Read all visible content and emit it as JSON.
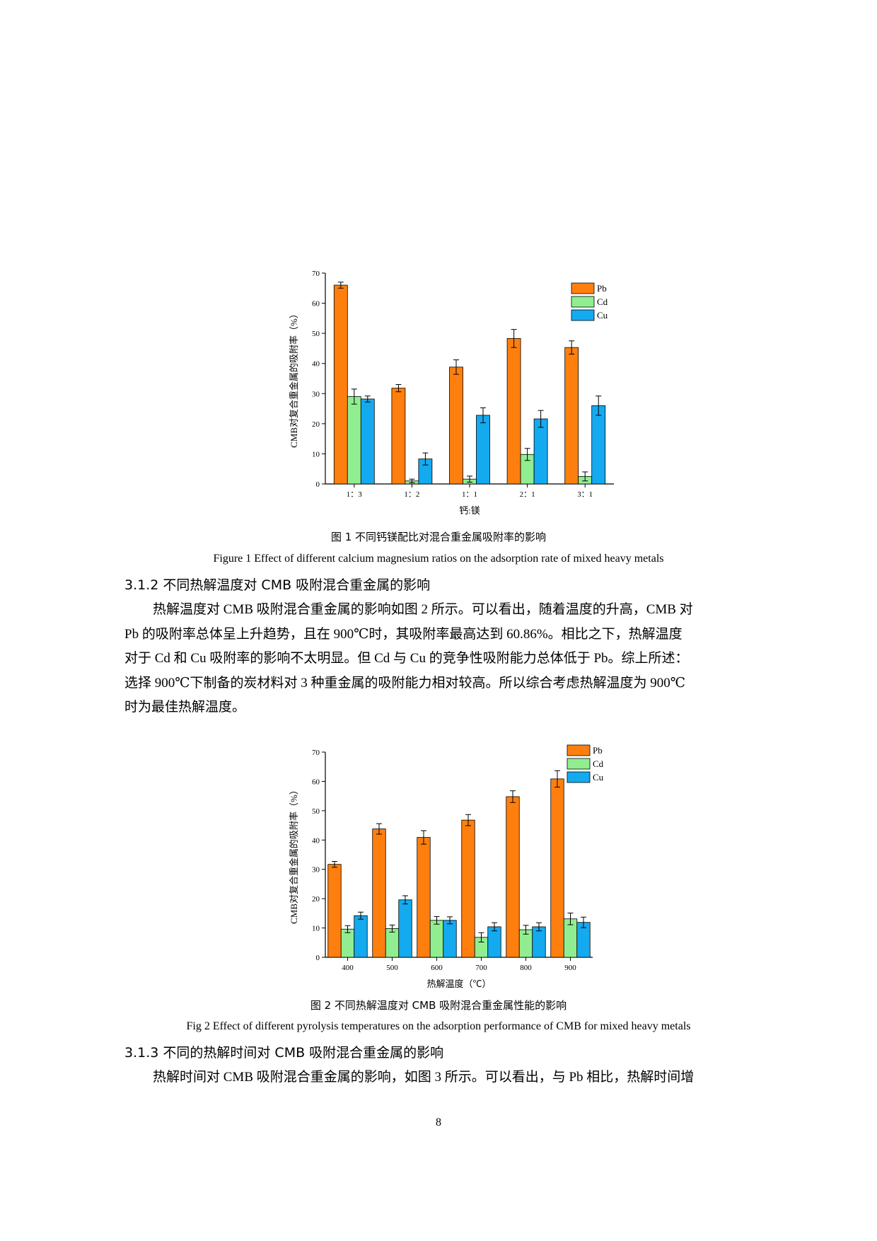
{
  "figure1": {
    "caption_cn": "图 1 不同钙镁配比对混合重金属吸附率的影响",
    "caption_en": "Figure 1 Effect of different calcium magnesium ratios on the adsorption rate of mixed heavy metals",
    "chart_data": {
      "type": "bar",
      "title": "",
      "xlabel": "钙:镁",
      "ylabel": "CMB对复合重金属的吸附率（%）",
      "categories": [
        "1：3",
        "1：2",
        "1：1",
        "2：1",
        "3：1"
      ],
      "ylim": [
        0,
        70
      ],
      "yticks": [
        0,
        10,
        20,
        30,
        40,
        50,
        60,
        70
      ],
      "legend_position": "top-right",
      "grid": false,
      "series": [
        {
          "name": "Pb",
          "color": "#FF7F0E",
          "values": [
            66.0,
            31.8,
            38.8,
            48.3,
            45.3
          ],
          "errors": [
            1.0,
            1.2,
            2.4,
            3.0,
            2.2
          ]
        },
        {
          "name": "Cd",
          "color": "#90EE90",
          "values": [
            29.0,
            1.0,
            1.6,
            9.8,
            2.5
          ],
          "errors": [
            2.5,
            0.6,
            1.0,
            2.0,
            1.5
          ]
        },
        {
          "name": "Cu",
          "color": "#14AAF0",
          "values": [
            28.2,
            8.3,
            22.8,
            21.6,
            26.0
          ],
          "errors": [
            1.0,
            2.0,
            2.5,
            2.8,
            3.2
          ]
        }
      ]
    }
  },
  "section312": {
    "heading": "3.1.2 不同热解温度对 CMB 吸附混合重金属的影响",
    "paragraph": [
      "热解温度对 CMB 吸附混合重金属的影响如图 2 所示。可以看出，随着温度的升高，CMB 对",
      "Pb 的吸附率总体呈上升趋势，且在 900℃时，其吸附率最高达到 60.86%。相比之下，热解温度",
      "对于 Cd 和 Cu 吸附率的影响不太明显。但 Cd 与 Cu 的竞争性吸附能力总体低于 Pb。综上所述：",
      "选择 900℃下制备的炭材料对 3 种重金属的吸附能力相对较高。所以综合考虑热解温度为 900℃",
      "时为最佳热解温度。"
    ]
  },
  "figure2": {
    "caption_cn": "图 2 不同热解温度对 CMB 吸附混合重金属性能的影响",
    "caption_en": "Fig 2 Effect of different pyrolysis temperatures on the adsorption performance of CMB for mixed heavy metals",
    "chart_data": {
      "type": "bar",
      "title": "",
      "xlabel": "热解温度（℃）",
      "ylabel": "CMB对复合重金属的吸附率（%）",
      "categories": [
        "400",
        "500",
        "600",
        "700",
        "800",
        "900"
      ],
      "ylim": [
        0,
        70
      ],
      "yticks": [
        0,
        10,
        20,
        30,
        40,
        50,
        60,
        70
      ],
      "legend_position": "top-right",
      "grid": false,
      "series": [
        {
          "name": "Pb",
          "color": "#FF7F0E",
          "values": [
            31.7,
            43.8,
            40.9,
            46.8,
            54.8,
            60.86
          ],
          "errors": [
            1.0,
            1.8,
            2.3,
            1.9,
            2.0,
            2.8
          ]
        },
        {
          "name": "Cd",
          "color": "#90EE90",
          "values": [
            9.6,
            9.8,
            12.6,
            6.8,
            9.4,
            13.1
          ],
          "errors": [
            1.2,
            1.2,
            1.3,
            1.6,
            1.5,
            2.0
          ]
        },
        {
          "name": "Cu",
          "color": "#14AAF0",
          "values": [
            14.2,
            19.6,
            12.6,
            10.4,
            10.4,
            11.9
          ],
          "errors": [
            1.2,
            1.4,
            1.2,
            1.4,
            1.4,
            1.8
          ]
        }
      ]
    }
  },
  "section313": {
    "heading": "3.1.3 不同的热解时间对 CMB 吸附混合重金属的影响",
    "paragraph": [
      "热解时间对 CMB 吸附混合重金属的影响，如图 3 所示。可以看出，与 Pb 相比，热解时间增"
    ]
  },
  "page_number": "8"
}
